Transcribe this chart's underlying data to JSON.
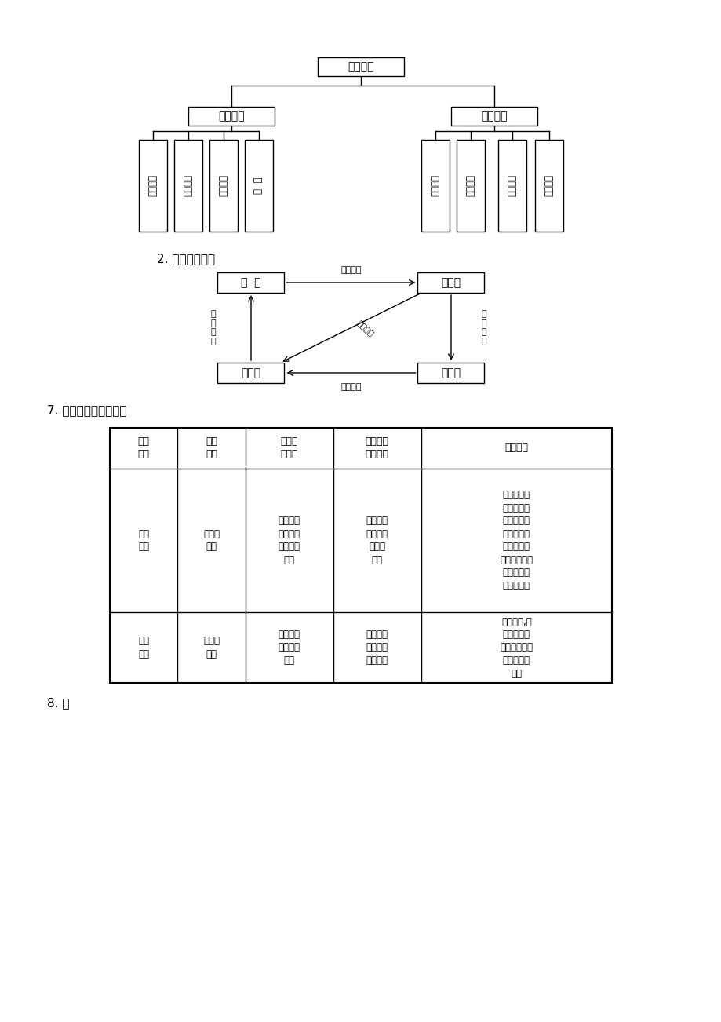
{
  "bg_color": "#ffffff",
  "section2_label": "2. 地壳物质循环",
  "section7_label": "7. 地壳运动与地表形态",
  "section8_label": "8. 山",
  "tree_root": "地质作用",
  "tree_level1": [
    "内力作用",
    "外力作用"
  ],
  "tree_level2_left": [
    "岩浆活动",
    "地壳运动",
    "变质作用",
    "地  震"
  ],
  "tree_level2_right": [
    "风化作用",
    "侵蚀作用",
    "搬运作用",
    "堆积作用"
  ],
  "table_headers": [
    "地壳\n运动",
    "运动\n方向",
    "对岩层\n的影响",
    "对地表形\n态的影响",
    "两者关系"
  ],
  "table_row1_c0": "水平\n运动",
  "table_row1_c1": "与地表\n平行",
  "table_row1_c2": "使岩层发\n生水平位\n移和弯曲\n变形",
  "table_row1_c3": "形成断裂\n带和巨大\n的褶皱\n山脉",
  "table_row1_c4": "水平运动和\n垂直运动实\n际上是相伴\n发生的，在\n不同区域和\n不同时期，两\n者常有主次\n之分，但就",
  "table_row2_c0": "垂直\n运动",
  "table_row2_c1": "与地表\n垂直",
  "table_row2_c2": "使岩层发\n生隆起或\n拗陷",
  "table_row2_c3": "使地表高\n低起伏和\n海陆变迁",
  "table_row2_c4": "全球而言,地\n壳运动以水\n平运动为主，\n以垂直运动\n为辅"
}
